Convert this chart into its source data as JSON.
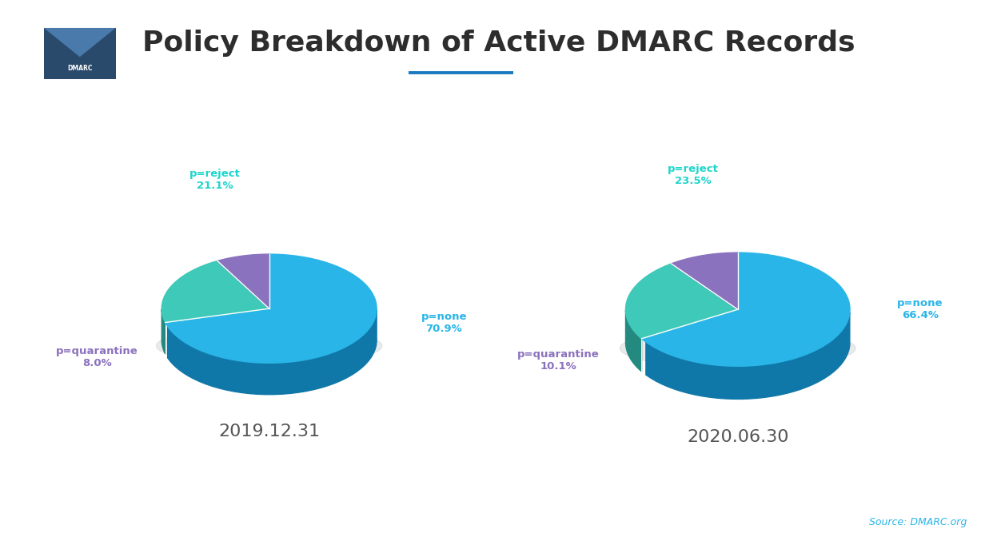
{
  "title": "Policy Breakdown of Active DMARC Records",
  "background_color": "#ffffff",
  "title_color": "#2d2d2d",
  "title_fontsize": 26,
  "underline_color": "#1a7abf",
  "charts": [
    {
      "date_label": "2019.12.31",
      "values": [
        70.9,
        21.1,
        8.0
      ],
      "labels": [
        "p=none",
        "p=reject",
        "p=quarantine"
      ],
      "colors": [
        "#29b5e8",
        "#3ec9b8",
        "#8b72be"
      ],
      "side_colors": [
        "#1078a8",
        "#248a80",
        "#5a4590"
      ],
      "label_colors": [
        "#29b5e8",
        "#1dd6cc",
        "#8b72be"
      ],
      "pct_labels": [
        "70.9%",
        "21.1%",
        "8.0%"
      ],
      "startangle": 90
    },
    {
      "date_label": "2020.06.30",
      "values": [
        66.4,
        23.5,
        10.1
      ],
      "labels": [
        "p=none",
        "p=reject",
        "p=quarantine"
      ],
      "colors": [
        "#29b5e8",
        "#3ec9b8",
        "#8b72be"
      ],
      "side_colors": [
        "#1078a8",
        "#248a80",
        "#5a4590"
      ],
      "label_colors": [
        "#29b5e8",
        "#1dd6cc",
        "#8b72be"
      ],
      "pct_labels": [
        "66.4%",
        "23.5%",
        "10.1%"
      ],
      "startangle": 90
    }
  ],
  "source_text": "Source: DMARC.org",
  "source_color": "#29b5e8",
  "label_positions_2019": {
    "p=none": [
      1.22,
      -0.28
    ],
    "p=reject": [
      -0.38,
      0.72
    ],
    "p=quarantine": [
      -1.2,
      -0.52
    ]
  },
  "label_positions_2020": {
    "p=none": [
      1.22,
      -0.18
    ],
    "p=reject": [
      -0.3,
      0.72
    ],
    "p=quarantine": [
      -1.2,
      -0.52
    ]
  }
}
